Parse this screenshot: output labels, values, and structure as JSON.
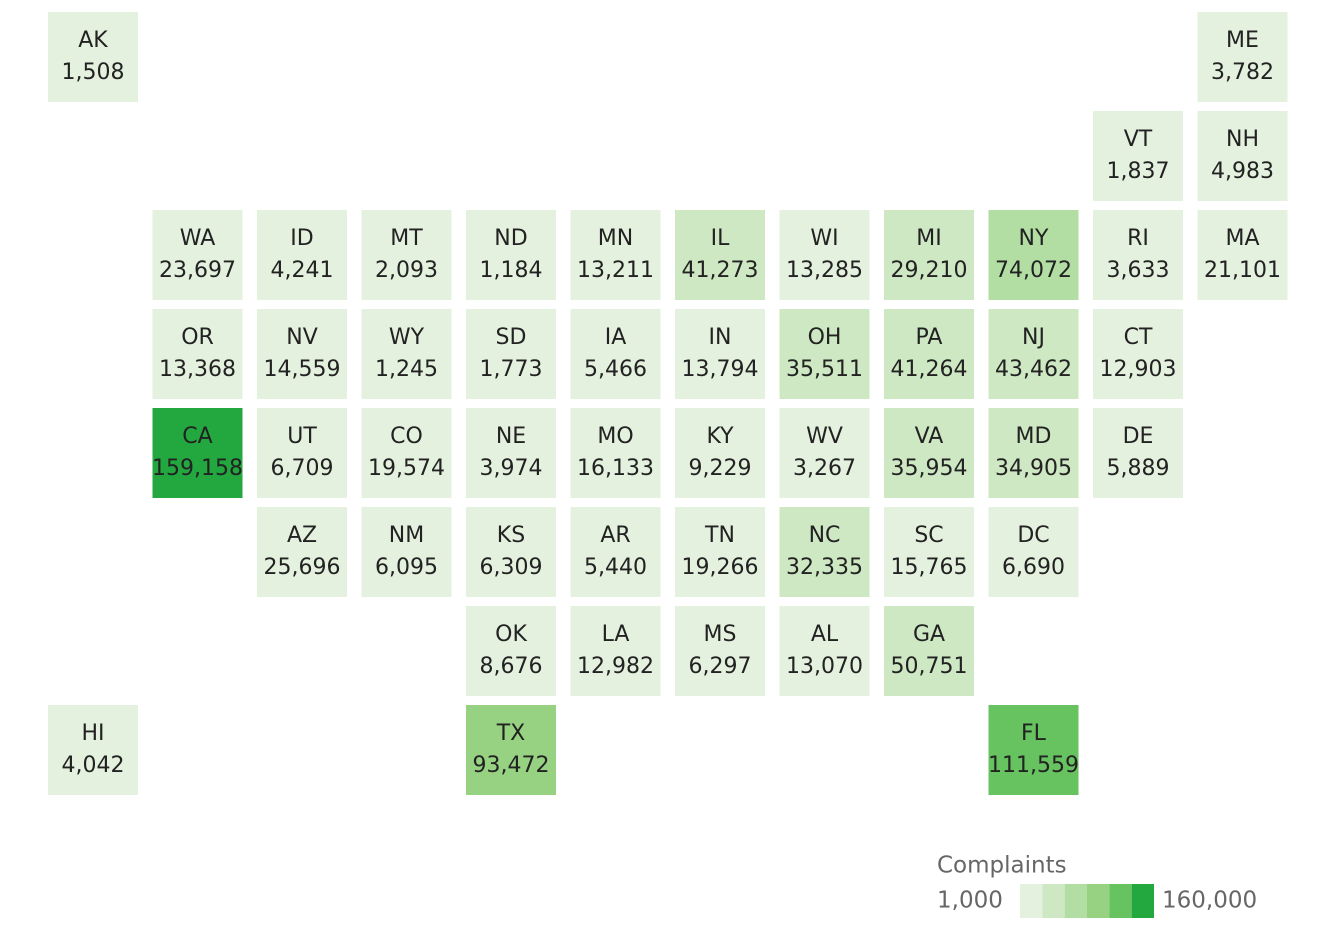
{
  "chart_data": {
    "type": "tile-map",
    "grid": [
      [
        {
          "state": "AK",
          "value": 1508,
          "value_label": "1,508"
        },
        null,
        null,
        null,
        null,
        null,
        null,
        null,
        null,
        null,
        null,
        {
          "state": "ME",
          "value": 3782,
          "value_label": "3,782"
        }
      ],
      [
        null,
        null,
        null,
        null,
        null,
        null,
        null,
        null,
        null,
        null,
        {
          "state": "VT",
          "value": 1837,
          "value_label": "1,837"
        },
        {
          "state": "NH",
          "value": 4983,
          "value_label": "4,983"
        }
      ],
      [
        null,
        {
          "state": "WA",
          "value": 23697,
          "value_label": "23,697"
        },
        {
          "state": "ID",
          "value": 4241,
          "value_label": "4,241"
        },
        {
          "state": "MT",
          "value": 2093,
          "value_label": "2,093"
        },
        {
          "state": "ND",
          "value": 1184,
          "value_label": "1,184"
        },
        {
          "state": "MN",
          "value": 13211,
          "value_label": "13,211"
        },
        {
          "state": "IL",
          "value": 41273,
          "value_label": "41,273"
        },
        {
          "state": "WI",
          "value": 13285,
          "value_label": "13,285"
        },
        {
          "state": "MI",
          "value": 29210,
          "value_label": "29,210"
        },
        {
          "state": "NY",
          "value": 74072,
          "value_label": "74,072"
        },
        {
          "state": "RI",
          "value": 3633,
          "value_label": "3,633"
        },
        {
          "state": "MA",
          "value": 21101,
          "value_label": "21,101"
        }
      ],
      [
        null,
        {
          "state": "OR",
          "value": 13368,
          "value_label": "13,368"
        },
        {
          "state": "NV",
          "value": 14559,
          "value_label": "14,559"
        },
        {
          "state": "WY",
          "value": 1245,
          "value_label": "1,245"
        },
        {
          "state": "SD",
          "value": 1773,
          "value_label": "1,773"
        },
        {
          "state": "IA",
          "value": 5466,
          "value_label": "5,466"
        },
        {
          "state": "IN",
          "value": 13794,
          "value_label": "13,794"
        },
        {
          "state": "OH",
          "value": 35511,
          "value_label": "35,511"
        },
        {
          "state": "PA",
          "value": 41264,
          "value_label": "41,264"
        },
        {
          "state": "NJ",
          "value": 43462,
          "value_label": "43,462"
        },
        {
          "state": "CT",
          "value": 12903,
          "value_label": "12,903"
        },
        null
      ],
      [
        null,
        {
          "state": "CA",
          "value": 159158,
          "value_label": "159,158"
        },
        {
          "state": "UT",
          "value": 6709,
          "value_label": "6,709"
        },
        {
          "state": "CO",
          "value": 19574,
          "value_label": "19,574"
        },
        {
          "state": "NE",
          "value": 3974,
          "value_label": "3,974"
        },
        {
          "state": "MO",
          "value": 16133,
          "value_label": "16,133"
        },
        {
          "state": "KY",
          "value": 9229,
          "value_label": "9,229"
        },
        {
          "state": "WV",
          "value": 3267,
          "value_label": "3,267"
        },
        {
          "state": "VA",
          "value": 35954,
          "value_label": "35,954"
        },
        {
          "state": "MD",
          "value": 34905,
          "value_label": "34,905"
        },
        {
          "state": "DE",
          "value": 5889,
          "value_label": "5,889"
        },
        null
      ],
      [
        null,
        null,
        {
          "state": "AZ",
          "value": 25696,
          "value_label": "25,696"
        },
        {
          "state": "NM",
          "value": 6095,
          "value_label": "6,095"
        },
        {
          "state": "KS",
          "value": 6309,
          "value_label": "6,309"
        },
        {
          "state": "AR",
          "value": 5440,
          "value_label": "5,440"
        },
        {
          "state": "TN",
          "value": 19266,
          "value_label": "19,266"
        },
        {
          "state": "NC",
          "value": 32335,
          "value_label": "32,335"
        },
        {
          "state": "SC",
          "value": 15765,
          "value_label": "15,765"
        },
        {
          "state": "DC",
          "value": 6690,
          "value_label": "6,690"
        },
        null,
        null
      ],
      [
        null,
        null,
        null,
        null,
        {
          "state": "OK",
          "value": 8676,
          "value_label": "8,676"
        },
        {
          "state": "LA",
          "value": 12982,
          "value_label": "12,982"
        },
        {
          "state": "MS",
          "value": 6297,
          "value_label": "6,297"
        },
        {
          "state": "AL",
          "value": 13070,
          "value_label": "13,070"
        },
        {
          "state": "GA",
          "value": 50751,
          "value_label": "50,751"
        },
        null,
        null,
        null
      ],
      [
        {
          "state": "HI",
          "value": 4042,
          "value_label": "4,042"
        },
        null,
        null,
        null,
        {
          "state": "TX",
          "value": 93472,
          "value_label": "93,472"
        },
        null,
        null,
        null,
        null,
        {
          "state": "FL",
          "value": 111559,
          "value_label": "111,559"
        },
        null,
        null
      ]
    ],
    "legend": {
      "title": "Complaints",
      "min": {
        "value": 1000,
        "label": "1,000"
      },
      "max": {
        "value": 160000,
        "label": "160,000"
      },
      "colors": [
        "#e5f1df",
        "#cde8c2",
        "#b3dea3",
        "#97d283",
        "#67c260",
        "#22a83f"
      ]
    }
  }
}
